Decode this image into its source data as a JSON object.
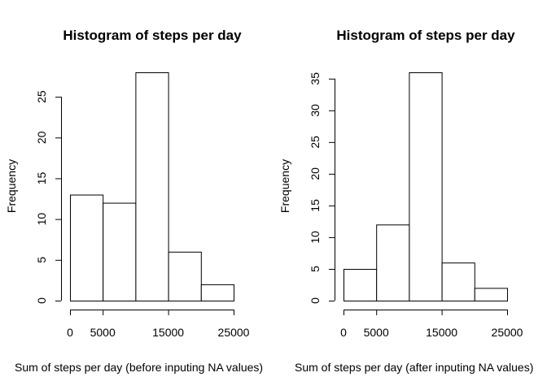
{
  "chart_data": [
    {
      "type": "bar",
      "subtype": "histogram",
      "title": "Histogram of steps per day",
      "xlabel": "Sum of steps per day (before inputing NA values)",
      "ylabel": "Frequency",
      "bin_edges": [
        0,
        5000,
        10000,
        15000,
        20000,
        25000
      ],
      "values": [
        13,
        12,
        28,
        6,
        2
      ],
      "xlim": [
        0,
        25000
      ],
      "ylim": [
        0,
        28
      ],
      "x_ticks": [
        0,
        5000,
        15000,
        25000
      ],
      "x_tick_labels": [
        "0",
        "5000",
        "15000",
        "25000"
      ],
      "y_ticks": [
        0,
        5,
        10,
        15,
        20,
        25
      ],
      "y_tick_labels": [
        "0",
        "5",
        "10",
        "15",
        "20",
        "25"
      ],
      "grid": false,
      "legend": "none"
    },
    {
      "type": "bar",
      "subtype": "histogram",
      "title": "Histogram of steps per day",
      "xlabel": "Sum of steps per day (after inputing NA values)",
      "ylabel": "Frequency",
      "bin_edges": [
        0,
        5000,
        10000,
        15000,
        20000,
        25000
      ],
      "values": [
        5,
        12,
        36,
        6,
        2
      ],
      "xlim": [
        0,
        25000
      ],
      "ylim": [
        0,
        36
      ],
      "x_ticks": [
        0,
        5000,
        15000,
        25000
      ],
      "x_tick_labels": [
        "0",
        "5000",
        "15000",
        "25000"
      ],
      "y_ticks": [
        0,
        5,
        10,
        15,
        20,
        25,
        30,
        35
      ],
      "y_tick_labels": [
        "0",
        "5",
        "10",
        "15",
        "20",
        "25",
        "30",
        "35"
      ],
      "grid": false,
      "legend": "none"
    }
  ]
}
